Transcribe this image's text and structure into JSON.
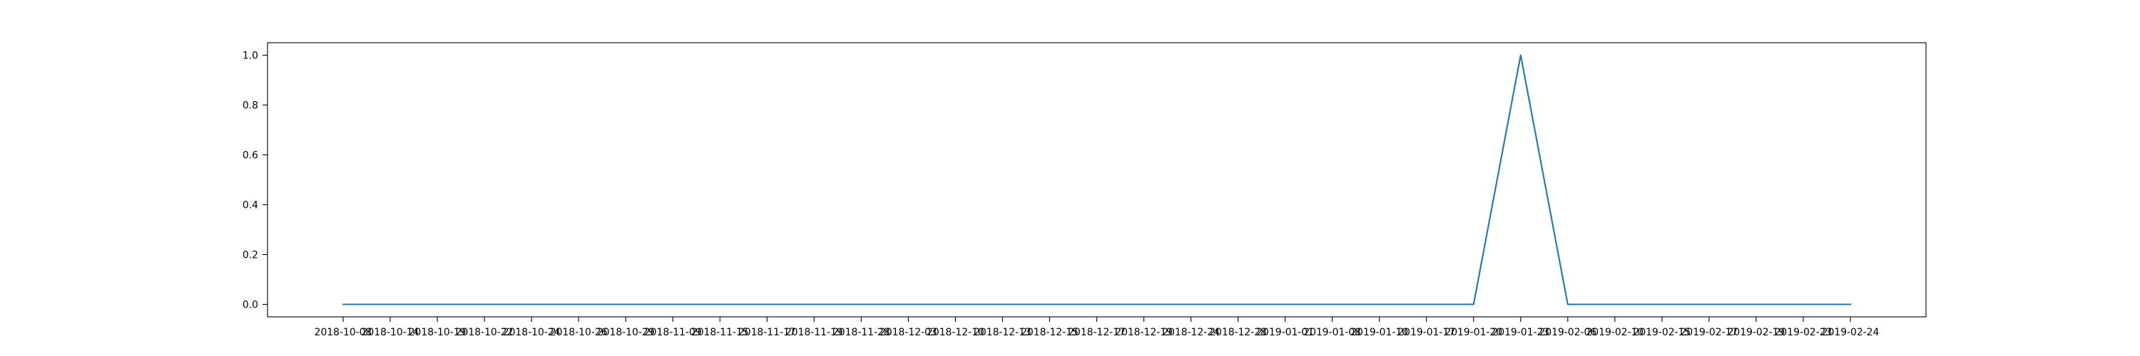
{
  "chart_data": {
    "type": "line",
    "title": "",
    "xlabel": "",
    "ylabel": "",
    "grid": false,
    "legend": "none",
    "x_ticks": [
      "2018-10-08",
      "2018-10-14",
      "2018-10-19",
      "2018-10-22",
      "2018-10-24",
      "2018-10-26",
      "2018-10-29",
      "2018-11-09",
      "2018-11-15",
      "2018-11-17",
      "2018-11-19",
      "2018-11-28",
      "2018-12-03",
      "2018-12-10",
      "2018-12-13",
      "2018-12-15",
      "2018-12-17",
      "2018-12-19",
      "2018-12-24",
      "2018-12-28",
      "2019-01-01",
      "2019-01-08",
      "2019-01-10",
      "2019-01-17",
      "2019-01-20",
      "2019-01-23",
      "2019-02-06",
      "2019-02-10",
      "2019-02-15",
      "2019-02-17",
      "2019-02-19",
      "2019-02-23",
      "2019-02-24"
    ],
    "y_ticks": [
      "0.0",
      "0.2",
      "0.4",
      "0.6",
      "0.8",
      "1.0"
    ],
    "ylim": [
      -0.05,
      1.05
    ],
    "series": [
      {
        "color": "#1f77b4",
        "x": [
          "2018-10-08",
          "2018-10-14",
          "2018-10-19",
          "2018-10-22",
          "2018-10-24",
          "2018-10-26",
          "2018-10-29",
          "2018-11-09",
          "2018-11-15",
          "2018-11-17",
          "2018-11-19",
          "2018-11-28",
          "2018-12-03",
          "2018-12-10",
          "2018-12-13",
          "2018-12-15",
          "2018-12-17",
          "2018-12-19",
          "2018-12-24",
          "2018-12-28",
          "2019-01-01",
          "2019-01-08",
          "2019-01-10",
          "2019-01-17",
          "2019-01-20",
          "2019-01-23",
          "2019-02-06",
          "2019-02-10",
          "2019-02-15",
          "2019-02-17",
          "2019-02-19",
          "2019-02-23",
          "2019-02-24"
        ],
        "values": [
          0,
          0,
          0,
          0,
          0,
          0,
          0,
          0,
          0,
          0,
          0,
          0,
          0,
          0,
          0,
          0,
          0,
          0,
          0,
          0,
          0,
          0,
          0,
          0,
          0,
          1,
          0,
          0,
          0,
          0,
          0,
          0,
          0
        ]
      }
    ]
  }
}
